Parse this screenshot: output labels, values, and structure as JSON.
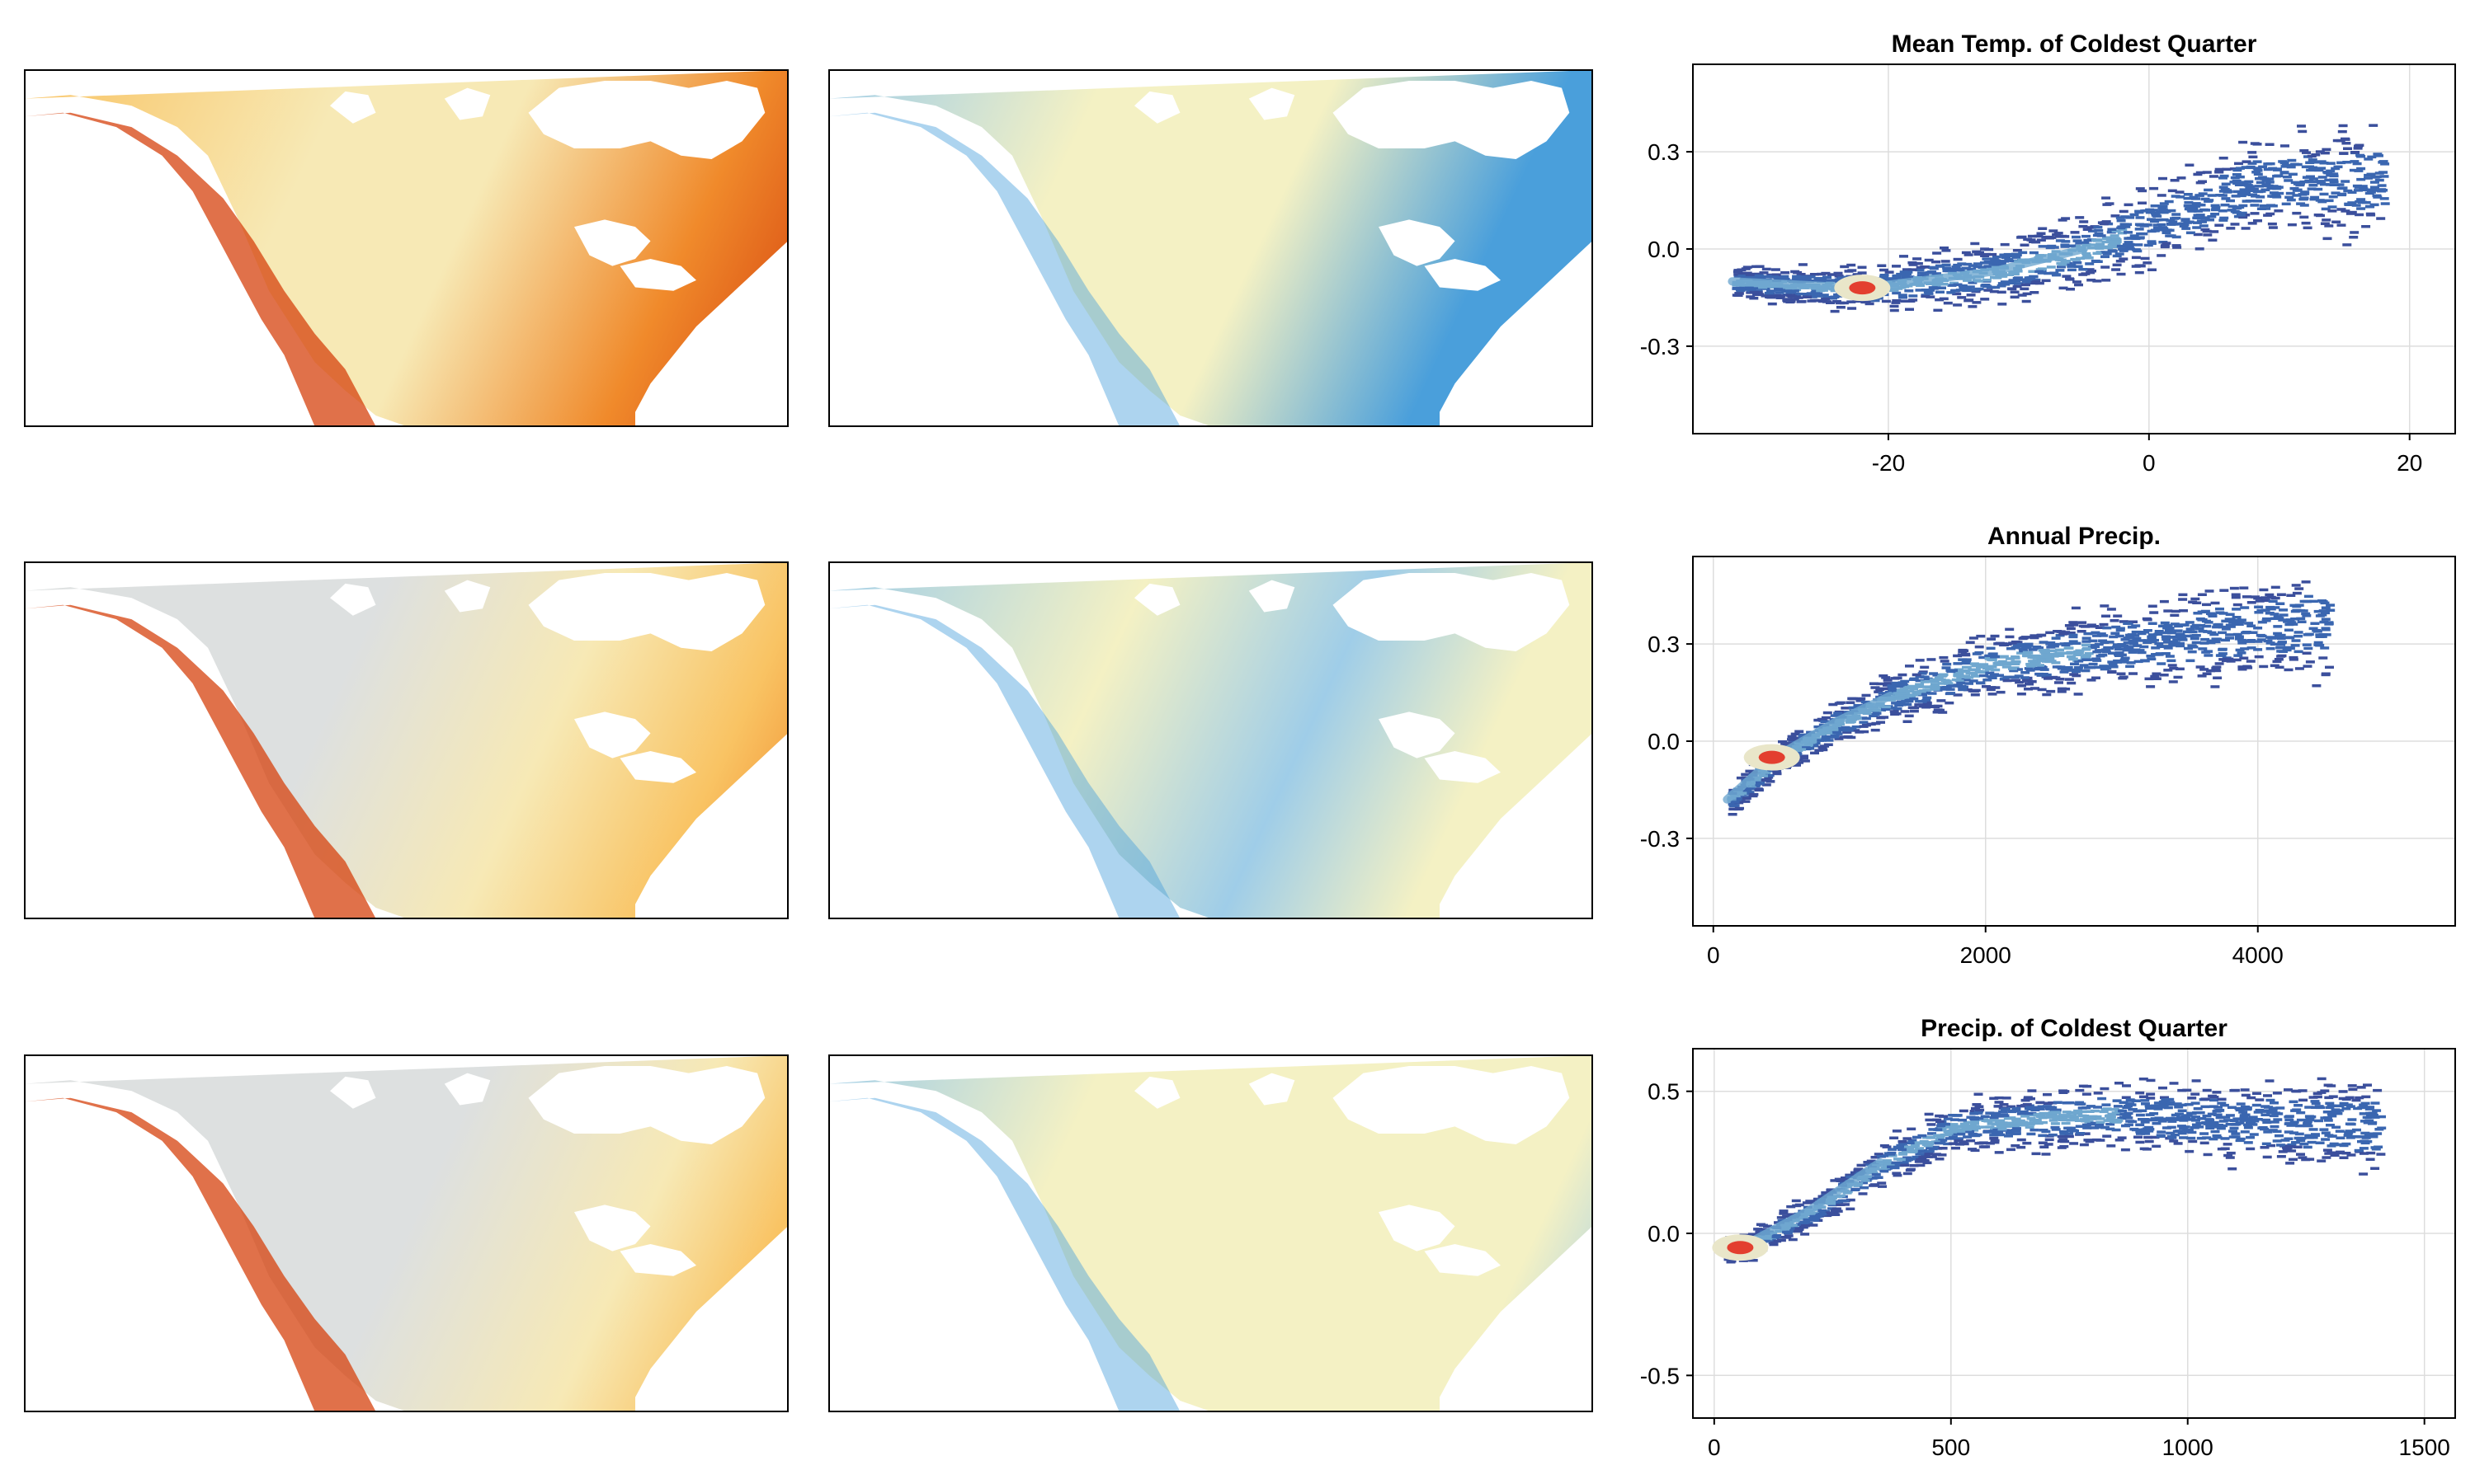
{
  "colors": {
    "frame": "#000000",
    "grid": "#dddddd",
    "ocean": "#ffffff",
    "warm_ramp": [
      "#dde0e0",
      "#f7e9b5",
      "#f9c363",
      "#f08a2b",
      "#d5420e"
    ],
    "cool_ramp": [
      "#4a9fdb",
      "#9fcde8",
      "#f4f1c4",
      "#f4d98a",
      "#8a2d56"
    ],
    "density_ramp": [
      "#3b4f9c",
      "#3a66b0",
      "#6fa7cf",
      "#e9e6c9",
      "#e33f2f"
    ]
  },
  "maps": [
    {
      "name": "row1-col1",
      "palette": "warm",
      "style": "warm-coldtemp"
    },
    {
      "name": "row1-col2",
      "palette": "cool",
      "style": "cool-coldtemp"
    },
    {
      "name": "row2-col1",
      "palette": "warm",
      "style": "warm-annprec"
    },
    {
      "name": "row2-col2",
      "palette": "cool",
      "style": "cool-annprec"
    },
    {
      "name": "row3-col1",
      "palette": "warm",
      "style": "warm-coldprec"
    },
    {
      "name": "row3-col2",
      "palette": "cool",
      "style": "cool-coldprec"
    }
  ],
  "chart_data": [
    {
      "type": "heatmap",
      "title": "Mean Temp. of Coldest Quarter",
      "xlabel": "",
      "ylabel": "",
      "xlim": [
        -35,
        23.5
      ],
      "ylim": [
        -0.57,
        0.57
      ],
      "xticks": [
        -20,
        0,
        20
      ],
      "xtick_labels": [
        "-20",
        "0",
        "20"
      ],
      "yticks": [
        -0.3,
        0.0,
        0.3
      ],
      "ytick_labels": [
        "-0.3",
        "0.0",
        "0.3"
      ],
      "grid": true,
      "density_curve": [
        [
          -32,
          -0.1
        ],
        [
          -22,
          -0.12
        ],
        [
          -12,
          -0.07
        ],
        [
          -5,
          0.0
        ],
        [
          0,
          0.08
        ],
        [
          8,
          0.2
        ],
        [
          18,
          0.22
        ]
      ],
      "hotspot": [
        -22,
        -0.12
      ]
    },
    {
      "type": "heatmap",
      "title": "Annual Precip.",
      "xlabel": "",
      "ylabel": "",
      "xlim": [
        -150,
        5450
      ],
      "ylim": [
        -0.57,
        0.57
      ],
      "xticks": [
        0,
        2000,
        4000
      ],
      "xtick_labels": [
        "0",
        "2000",
        "4000"
      ],
      "yticks": [
        -0.3,
        0.0,
        0.3
      ],
      "ytick_labels": [
        "-0.3",
        "0.0",
        "0.3"
      ],
      "grid": true,
      "density_curve": [
        [
          100,
          -0.18
        ],
        [
          450,
          -0.05
        ],
        [
          900,
          0.06
        ],
        [
          1300,
          0.14
        ],
        [
          2000,
          0.24
        ],
        [
          3000,
          0.3
        ],
        [
          4500,
          0.38
        ]
      ],
      "hotspot": [
        430,
        -0.05
      ]
    },
    {
      "type": "heatmap",
      "title": "Precip. of Coldest Quarter",
      "xlabel": "",
      "ylabel": "",
      "xlim": [
        -45,
        1565
      ],
      "ylim": [
        -0.65,
        0.65
      ],
      "xticks": [
        0,
        500,
        1000,
        1500
      ],
      "xtick_labels": [
        "0",
        "500",
        "1000",
        "1500"
      ],
      "yticks": [
        -0.5,
        0.0,
        0.5
      ],
      "ytick_labels": [
        "-0.5",
        "0.0",
        "0.5"
      ],
      "grid": true,
      "density_curve": [
        [
          20,
          -0.06
        ],
        [
          55,
          -0.05
        ],
        [
          200,
          0.08
        ],
        [
          350,
          0.25
        ],
        [
          500,
          0.38
        ],
        [
          800,
          0.42
        ],
        [
          1400,
          0.38
        ]
      ],
      "hotspot": [
        55,
        -0.05
      ]
    }
  ]
}
